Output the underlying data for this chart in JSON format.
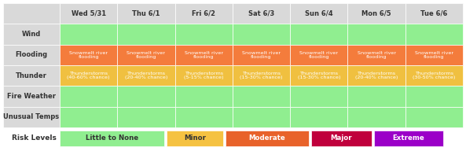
{
  "days": [
    "Wed 5/31",
    "Thu 6/1",
    "Fri 6/2",
    "Sat 6/3",
    "Sun 6/4",
    "Mon 6/5",
    "Tue 6/6"
  ],
  "rows": [
    "Wind",
    "Flooding",
    "Thunder",
    "Fire Weather",
    "Unusual Temps"
  ],
  "header_bg": "#d9d9d9",
  "row_label_bg": "#d9d9d9",
  "green": "#90ee90",
  "cell_data": {
    "Wind": {
      "type": "all",
      "color": "#90ee90",
      "text": ""
    },
    "Flooding": {
      "type": "all",
      "color": "#f47c3c",
      "text": "Snowmelt river\nflooding"
    },
    "Fire Weather": {
      "type": "all",
      "color": "#90ee90",
      "text": ""
    },
    "Unusual Temps": {
      "type": "all",
      "color": "#90ee90",
      "text": ""
    }
  },
  "thunder_cells": [
    "Thunderstorms\n(40-60% chance)",
    "Thunderstorms\n(20-40% chance)",
    "Thunderstorms\n(5-15% chance)",
    "Thunderstorms\n(15-30% chance)",
    "Thunderstorms\n(15-30% chance)",
    "Thunderstorms\n(20-40% chance)",
    "Thunderstorms\n(30-50% chance)"
  ],
  "thunder_color": "#f0c040",
  "legend": [
    {
      "label": "Little to None",
      "color": "#90ee90",
      "text_color": "#333333"
    },
    {
      "label": "Minor",
      "color": "#f5c242",
      "text_color": "#333333"
    },
    {
      "label": "Moderate",
      "color": "#e8622a",
      "text_color": "#ffffff"
    },
    {
      "label": "Major",
      "color": "#c0003c",
      "text_color": "#ffffff"
    },
    {
      "label": "Extreme",
      "color": "#9b00c8",
      "text_color": "#ffffff"
    }
  ],
  "bg_color": "#ffffff",
  "flooding_text_color": "#ffffff",
  "thunder_text_color": "#ffffff",
  "header_text_color": "#333333",
  "row_label_text_color": "#333333"
}
